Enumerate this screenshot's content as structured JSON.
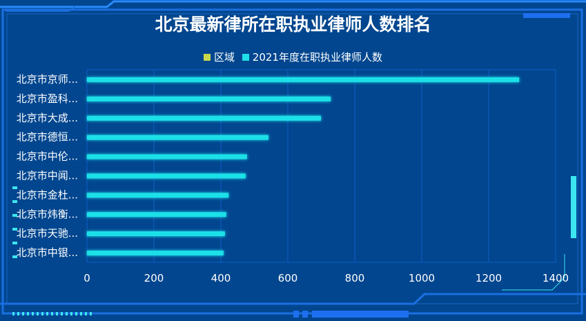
{
  "colors": {
    "background": "#01468f",
    "bar": "#1fe0e8",
    "legend_region": "#c9d84a",
    "frame": "#1b6fe0"
  },
  "chart_data": {
    "type": "bar",
    "orientation": "horizontal",
    "title": "北京最新律所在职执业律师人数排名",
    "legend": [
      {
        "name": "区域",
        "color": "#c9d84a"
      },
      {
        "name": "2021年度在职执业律师人数",
        "color": "#1fe0e8"
      }
    ],
    "legend_position": "top-center",
    "categories": [
      "北京市京师...",
      "北京市盈科...",
      "北京市大成...",
      "北京市德恒...",
      "北京市中伦...",
      "北京市中闻...",
      "北京市金杜...",
      "北京市炜衡...",
      "北京市天驰...",
      "北京市中银..."
    ],
    "series": [
      {
        "name": "2021年度在职执业律师人数",
        "values": [
          1291,
          728,
          699,
          542,
          478,
          474,
          423,
          416,
          412,
          408
        ]
      }
    ],
    "xlim": [
      0,
      1400
    ],
    "xticks": [
      "0",
      "200",
      "400",
      "600",
      "800",
      "1000",
      "1200",
      "1400"
    ],
    "grid": true
  }
}
